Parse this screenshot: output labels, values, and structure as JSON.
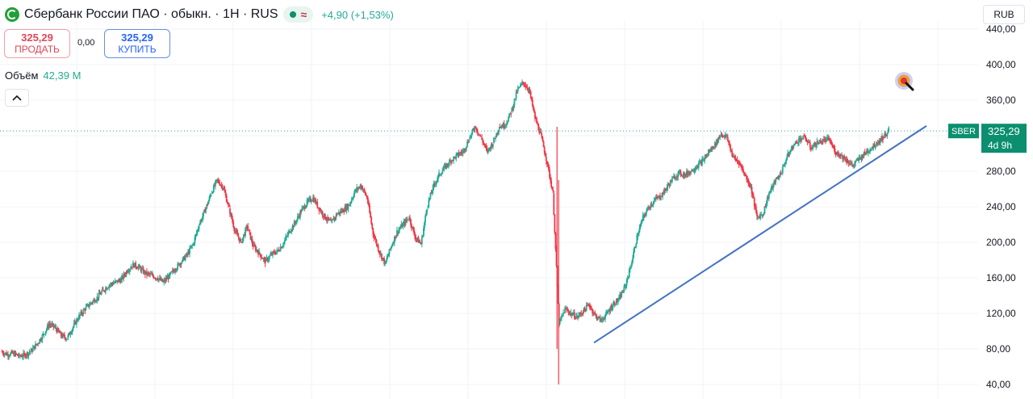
{
  "header": {
    "title": "Сбербанк России ПАО · обыкн. · 1H · RUS",
    "change": "+4,90 (+1,53%)",
    "pill_symbol": "≈",
    "currency": "RUB"
  },
  "trade": {
    "sell_price": "325,29",
    "sell_label": "ПРОДАТЬ",
    "spread": "0,00",
    "buy_price": "325,29",
    "buy_label": "КУПИТЬ"
  },
  "volume": {
    "label": "Объём",
    "value": "42,39 M"
  },
  "collapse_icon": "chevron-up-icon",
  "price_label": {
    "ticker": "SBER",
    "price": "325,29",
    "countdown": "4d 9h"
  },
  "colors": {
    "up": "#22ab94",
    "down": "#f23645",
    "trendline": "#4472c4",
    "last_price_line": "#22ab94",
    "grid": "#f0f3fa",
    "accent_buy": "#2962ff",
    "accent_sell": "#e04658"
  },
  "chart_data": {
    "type": "candlestick",
    "y_ticks": [
      "440,00",
      "400,00",
      "360,00",
      "320,00",
      "280,00",
      "240,00",
      "200,00",
      "160,00",
      "120,00",
      "80,00",
      "40,00"
    ],
    "ylim": [
      40,
      440
    ],
    "grid": true,
    "last_price": 325.29,
    "series": [
      {
        "name": "SBER",
        "type": "line",
        "close": [
          77,
          74,
          75,
          72,
          73,
          78,
          86,
          96,
          108,
          104,
          95,
          92,
          105,
          117,
          125,
          132,
          138,
          146,
          152,
          155,
          158,
          168,
          175,
          172,
          165,
          163,
          160,
          155,
          162,
          170,
          178,
          186,
          198,
          220,
          236,
          255,
          270,
          262,
          238,
          212,
          200,
          218,
          196,
          188,
          178,
          186,
          190,
          198,
          212,
          222,
          235,
          245,
          250,
          238,
          228,
          222,
          232,
          236,
          242,
          258,
          264,
          250,
          210,
          190,
          176,
          195,
          212,
          220,
          228,
          206,
          198,
          240,
          262,
          276,
          285,
          292,
          298,
          302,
          316,
          330,
          318,
          302,
          312,
          330,
          332,
          346,
          370,
          380,
          372,
          340,
          320,
          290,
          255,
          108,
          125,
          120,
          116,
          122,
          130,
          118,
          112,
          120,
          130,
          136,
          150,
          174,
          206,
          228,
          240,
          248,
          252,
          262,
          272,
          278,
          276,
          280,
          286,
          292,
          302,
          310,
          322,
          318,
          296,
          290,
          276,
          262,
          228,
          232,
          255,
          268,
          278,
          296,
          308,
          316,
          318,
          306,
          312,
          314,
          316,
          302,
          298,
          292,
          286,
          294,
          300,
          306,
          312,
          318,
          325.29
        ]
      },
      {
        "name": "Trendline",
        "type": "line",
        "x": [
          0,
          1
        ],
        "y": [
          87,
          331
        ]
      }
    ]
  }
}
